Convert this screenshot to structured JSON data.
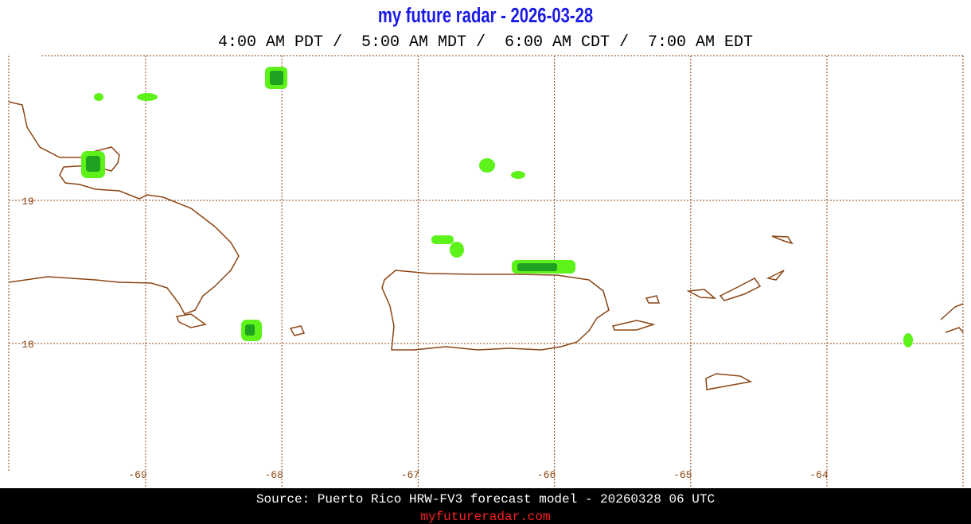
{
  "header": {
    "title": "my future radar - 2026-03-28",
    "times": "4:00 AM PDT /  5:00 AM MDT /  6:00 AM CDT /  7:00 AM EDT"
  },
  "map": {
    "lon_labels": [
      -69,
      -68,
      -67,
      -66,
      -65,
      -64
    ],
    "lat_labels": [
      19,
      18
    ]
  },
  "footer": {
    "source": "Source: Puerto Rico HRW-FV3 forecast model - 20260328 06 UTC",
    "site": "myfutureradar.com"
  }
}
